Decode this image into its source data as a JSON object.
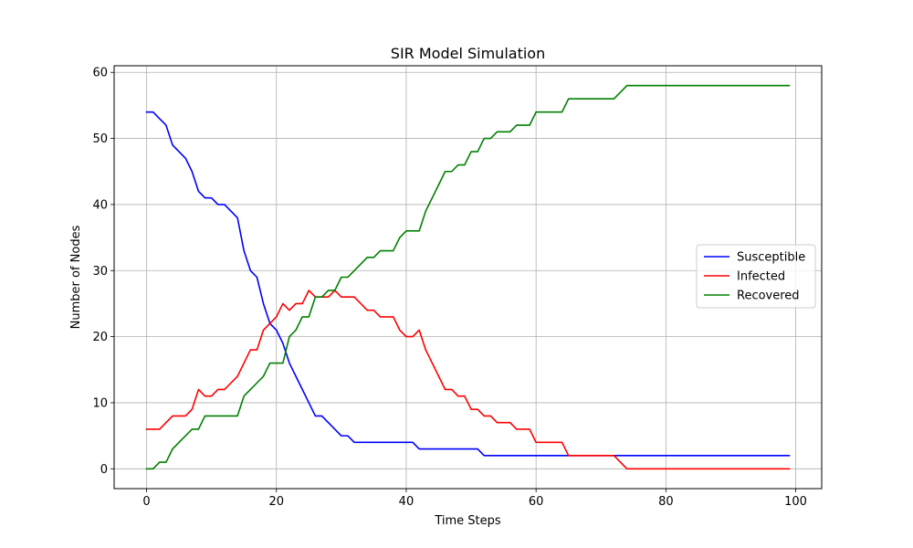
{
  "chart_data": {
    "type": "line",
    "title": "SIR Model Simulation",
    "xlabel": "Time Steps",
    "ylabel": "Number of Nodes",
    "xlim": [
      -5,
      104
    ],
    "ylim": [
      -3,
      61
    ],
    "xticks": [
      0,
      20,
      40,
      60,
      80,
      100
    ],
    "yticks": [
      0,
      10,
      20,
      30,
      40,
      50,
      60
    ],
    "grid": true,
    "legend_position": "center-right",
    "series": [
      {
        "name": "Susceptible",
        "color": "#0000ff",
        "values": [
          54,
          54,
          53,
          52,
          49,
          48,
          47,
          45,
          42,
          41,
          41,
          40,
          40,
          39,
          38,
          33,
          30,
          29,
          25,
          22,
          21,
          19,
          16,
          14,
          12,
          10,
          8,
          8,
          7,
          6,
          5,
          5,
          4,
          4,
          4,
          4,
          4,
          4,
          4,
          4,
          4,
          4,
          3,
          3,
          3,
          3,
          3,
          3,
          3,
          3,
          3,
          3,
          2,
          2,
          2,
          2,
          2,
          2,
          2,
          2,
          2,
          2,
          2,
          2,
          2,
          2,
          2,
          2,
          2,
          2,
          2,
          2,
          2,
          2,
          2,
          2,
          2,
          2,
          2,
          2,
          2,
          2,
          2,
          2,
          2,
          2,
          2,
          2,
          2,
          2,
          2,
          2,
          2,
          2,
          2,
          2,
          2,
          2,
          2,
          2
        ]
      },
      {
        "name": "Infected",
        "color": "#ff0000",
        "values": [
          6,
          6,
          6,
          7,
          8,
          8,
          8,
          9,
          12,
          11,
          11,
          12,
          12,
          13,
          14,
          16,
          18,
          18,
          21,
          22,
          23,
          25,
          24,
          25,
          25,
          27,
          26,
          26,
          26,
          27,
          26,
          26,
          26,
          25,
          24,
          24,
          23,
          23,
          23,
          21,
          20,
          20,
          21,
          18,
          16,
          14,
          12,
          12,
          11,
          11,
          9,
          9,
          8,
          8,
          7,
          7,
          7,
          6,
          6,
          6,
          4,
          4,
          4,
          4,
          4,
          2,
          2,
          2,
          2,
          2,
          2,
          2,
          2,
          1,
          0,
          0,
          0,
          0,
          0,
          0,
          0,
          0,
          0,
          0,
          0,
          0,
          0,
          0,
          0,
          0,
          0,
          0,
          0,
          0,
          0,
          0,
          0,
          0,
          0,
          0
        ]
      },
      {
        "name": "Recovered",
        "color": "#008000",
        "values": [
          0,
          0,
          1,
          1,
          3,
          4,
          5,
          6,
          6,
          8,
          8,
          8,
          8,
          8,
          8,
          11,
          12,
          13,
          14,
          16,
          16,
          16,
          20,
          21,
          23,
          23,
          26,
          26,
          27,
          27,
          29,
          29,
          30,
          31,
          32,
          32,
          33,
          33,
          33,
          35,
          36,
          36,
          36,
          39,
          41,
          43,
          45,
          45,
          46,
          46,
          48,
          48,
          50,
          50,
          51,
          51,
          51,
          52,
          52,
          52,
          54,
          54,
          54,
          54,
          54,
          56,
          56,
          56,
          56,
          56,
          56,
          56,
          56,
          57,
          58,
          58,
          58,
          58,
          58,
          58,
          58,
          58,
          58,
          58,
          58,
          58,
          58,
          58,
          58,
          58,
          58,
          58,
          58,
          58,
          58,
          58,
          58,
          58,
          58,
          58
        ]
      }
    ]
  }
}
